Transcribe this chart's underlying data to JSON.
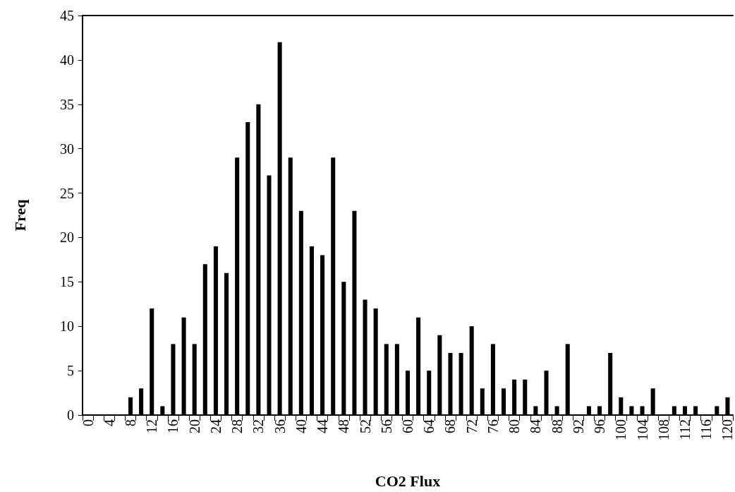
{
  "chart_data": {
    "type": "bar",
    "xlabel": "CO2 Flux",
    "ylabel": "Freq",
    "categories": [
      "0",
      null,
      "4",
      null,
      "8",
      null,
      "12",
      null,
      "16",
      null,
      "20",
      null,
      "24",
      null,
      "28",
      null,
      "32",
      null,
      "36",
      null,
      "40",
      null,
      "44",
      null,
      "48",
      null,
      "52",
      null,
      "56",
      null,
      "60",
      null,
      "64",
      null,
      "68",
      null,
      "72",
      null,
      "76",
      null,
      "80",
      null,
      "84",
      null,
      "88",
      null,
      "92",
      null,
      "96",
      null,
      "100",
      null,
      "104",
      null,
      "108",
      null,
      "112",
      null,
      "116",
      null,
      "120"
    ],
    "values": [
      0,
      0,
      0,
      0,
      2,
      3,
      12,
      1,
      8,
      11,
      8,
      17,
      19,
      16,
      29,
      33,
      35,
      27,
      42,
      29,
      23,
      19,
      18,
      29,
      15,
      23,
      13,
      12,
      8,
      8,
      5,
      11,
      5,
      9,
      7,
      7,
      10,
      3,
      8,
      3,
      4,
      4,
      1,
      5,
      1,
      8,
      0,
      1,
      1,
      7,
      2,
      1,
      1,
      3,
      0,
      1,
      1,
      1,
      0,
      1,
      2
    ],
    "color": "#000000",
    "ylim": [
      0,
      45
    ],
    "yticks": [
      0,
      5,
      10,
      15,
      20,
      25,
      30,
      35,
      40,
      45
    ],
    "grid": false
  }
}
